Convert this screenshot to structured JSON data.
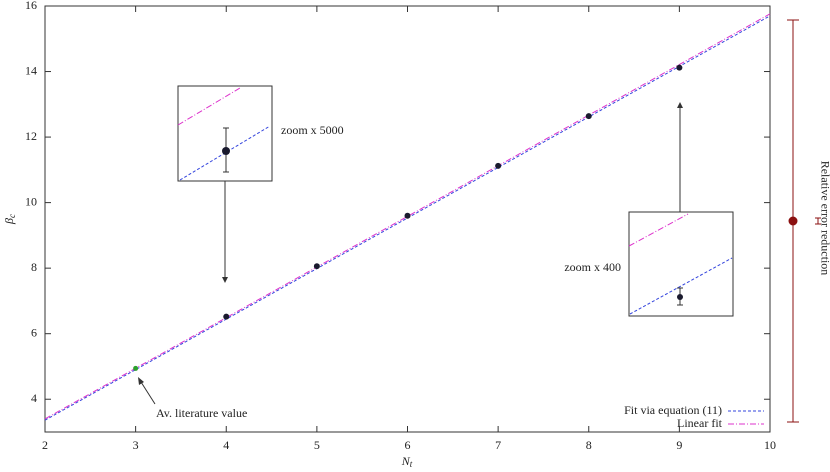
{
  "chart_data": {
    "type": "scatter-fit",
    "xlabel": [
      "N",
      "t"
    ],
    "ylabel": [
      "β",
      "c"
    ],
    "xlim": [
      2,
      10
    ],
    "ylim": [
      3,
      16
    ],
    "xticks": [
      2,
      3,
      4,
      5,
      6,
      7,
      8,
      9,
      10
    ],
    "yticks": [
      4,
      6,
      8,
      10,
      12,
      14,
      16
    ],
    "points": {
      "x": [
        4,
        5,
        6,
        7,
        8,
        9
      ],
      "values": [
        6.52,
        8.06,
        9.6,
        11.12,
        12.64,
        14.12
      ],
      "color": "#1a1a2e"
    },
    "literature": {
      "x": 3,
      "value": 4.94,
      "color": "#2ca02c",
      "label": "Av. literature value"
    },
    "series": [
      {
        "name": "Fit via equation (11)",
        "color": "#3344dd",
        "dash": "3,2",
        "x": [
          2,
          10
        ],
        "values": [
          3.36,
          15.7
        ]
      },
      {
        "name": "Linear fit",
        "color": "#dd33cc",
        "dash": "6,2,1,2",
        "x": [
          2,
          10
        ],
        "values": [
          3.4,
          15.76
        ]
      }
    ],
    "legend": "lower right",
    "annotations": [
      "zoom x 5000",
      "zoom x 400"
    ],
    "side_label": "Relative error reduction"
  }
}
